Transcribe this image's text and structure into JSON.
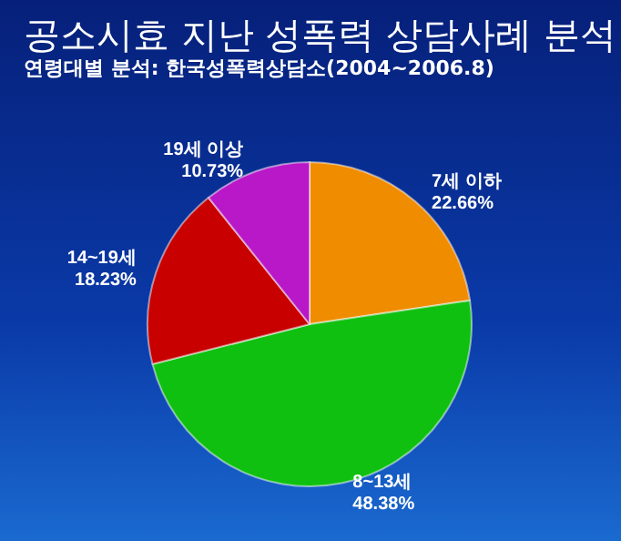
{
  "chart_data": {
    "type": "pie",
    "title": "공소시효 지난 성폭력 상담사례 분석",
    "subtitle": "연령대별 분석: 한국성폭력상담소(2004~2006.8)",
    "categories": [
      "7세 이하",
      "8~13세",
      "14~19세",
      "19세 이상"
    ],
    "values": [
      22.66,
      48.38,
      18.23,
      10.73
    ],
    "value_labels": [
      "22.66%",
      "48.38%",
      "18.23%",
      "10.73%"
    ],
    "colors": [
      "#f08c00",
      "#10c010",
      "#c80000",
      "#b818c8"
    ],
    "legend": false
  }
}
